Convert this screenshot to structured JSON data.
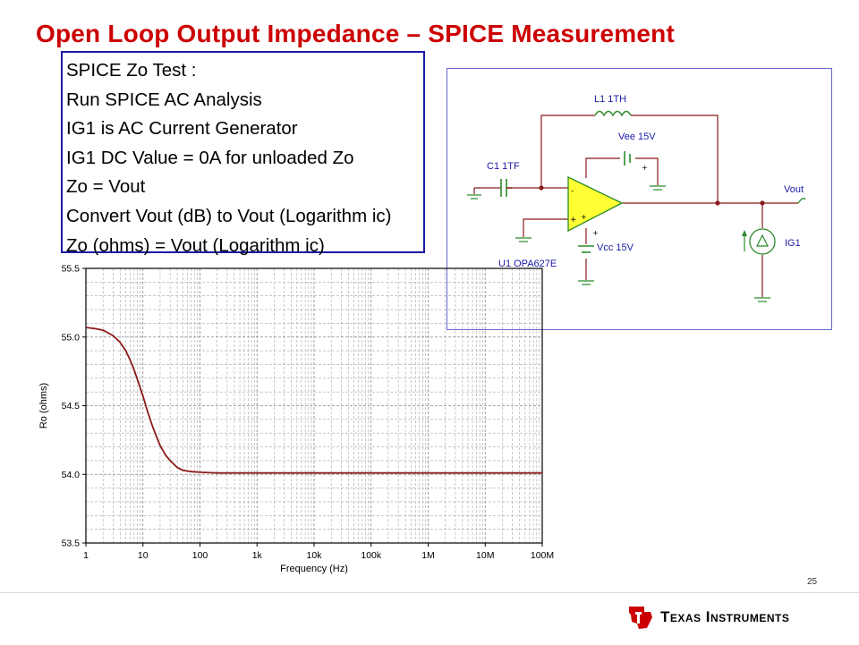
{
  "title": "Open Loop Output Impedance – SPICE Measurement",
  "textbox": {
    "lines": [
      "SPICE Zo Test :",
      "Run SPICE AC Analysis",
      "IG1 is AC Current  Generator",
      "IG1 DC Value  = 0A for unloaded   Zo",
      "Zo = Vout",
      "Convert  Vout (dB) to Vout (Logarithm ic)",
      "Zo (ohms) = Vout (Logarithm ic)"
    ]
  },
  "schematic": {
    "inductor_label": "L1 1TH",
    "vee_label": "Vee 15V",
    "cap_label": "C1 1TF",
    "vcc_label": "Vcc 15V",
    "opamp_label": "U1 OPA627E",
    "vout_label": "Vout",
    "source_label": "IG1",
    "opamp_color": "#ffff33",
    "wire_color": "#8b1a1a",
    "part_color": "#2a8a2a"
  },
  "chart_data": {
    "type": "line",
    "xscale": "log",
    "xlabel": "Frequency (Hz)",
    "ylabel": "Ro (ohms)",
    "xlim": [
      1,
      100000000
    ],
    "ylim": [
      53.5,
      55.5
    ],
    "x_ticks": [
      1,
      10,
      100,
      1000,
      10000,
      100000,
      1000000,
      10000000,
      100000000
    ],
    "x_tick_labels": [
      "1",
      "10",
      "100",
      "1k",
      "10k",
      "100k",
      "1M",
      "10M",
      "100M"
    ],
    "y_ticks": [
      53.5,
      54.0,
      54.5,
      55.0,
      55.5
    ],
    "y_tick_labels": [
      "53.5",
      "54.0",
      "54.5",
      "55.0",
      "55.5"
    ],
    "grid": true,
    "series": [
      {
        "color": "#8b1a1a",
        "x": [
          1,
          1.5,
          2,
          3,
          4,
          5,
          6,
          7,
          8,
          10,
          12,
          15,
          20,
          25,
          30,
          40,
          50,
          70,
          100,
          150,
          200,
          300,
          500,
          1000,
          10000,
          100000,
          1000000,
          10000000,
          100000000
        ],
        "y": [
          55.07,
          55.06,
          55.05,
          55.01,
          54.96,
          54.9,
          54.83,
          54.76,
          54.69,
          54.57,
          54.46,
          54.34,
          54.21,
          54.14,
          54.1,
          54.05,
          54.03,
          54.02,
          54.015,
          54.012,
          54.01,
          54.01,
          54.01,
          54.01,
          54.01,
          54.01,
          54.01,
          54.01,
          54.01
        ]
      }
    ]
  },
  "page_number": "25",
  "footer": {
    "brand": "Texas Instruments"
  }
}
